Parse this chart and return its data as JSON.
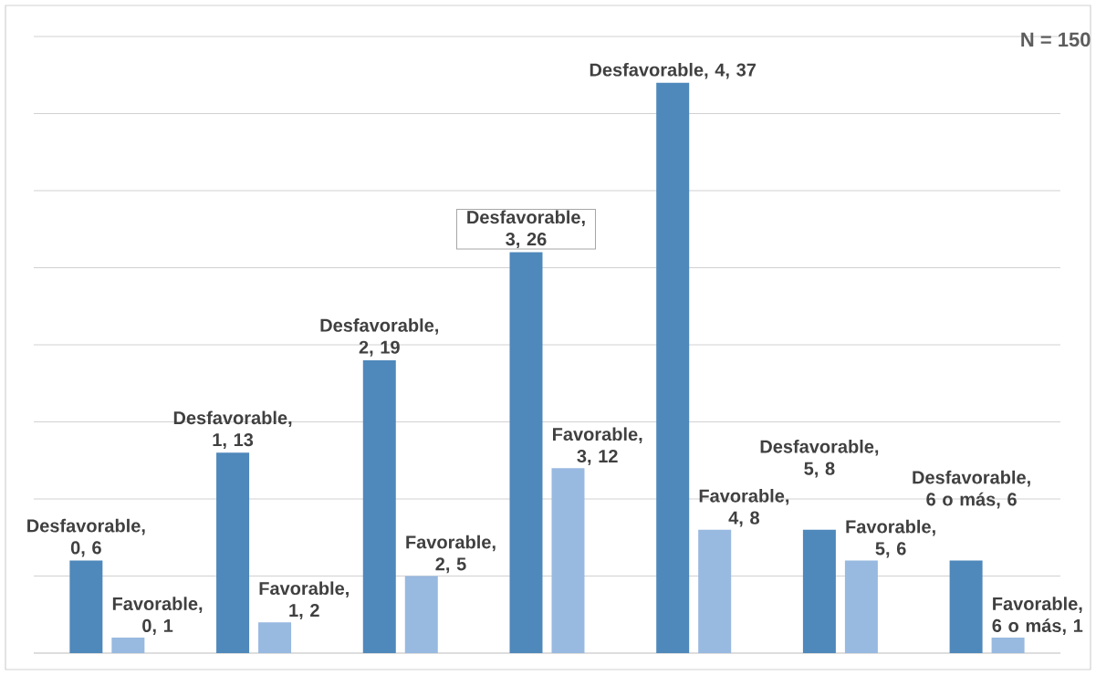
{
  "chart_data": {
    "type": "bar",
    "categories": [
      null,
      null,
      null,
      null,
      null,
      null,
      null
    ],
    "series": [
      {
        "color": "#4f88bb",
        "values": [
          6,
          13,
          19,
          26,
          37,
          8,
          6
        ],
        "value_labels": [
          "Desfavorable, 0, 6",
          "Desfavorable, 1, 13",
          "Desfavorable, 2, 19",
          "Desfavorable, 3, 26",
          "Desfavorable, 4, 37",
          "Desfavorable, 5, 8",
          "Desfavorable, 6 o más, 6"
        ]
      },
      {
        "color": "#98b9e0",
        "values": [
          1,
          2,
          5,
          12,
          8,
          6,
          1
        ],
        "value_labels": [
          "Favorable, 0, 1",
          "Favorable, 1, 2",
          "Favorable, 2, 5",
          "Favorable, 3, 12",
          "Favorable, 4, 8",
          "Favorable, 5, 6",
          "Favorable, 6 o más, 1"
        ]
      }
    ],
    "ylim": [
      0,
      40
    ],
    "yticks": [
      {
        "value": 0,
        "label": null
      },
      {
        "value": 5,
        "label": null
      },
      {
        "value": 10,
        "label": null
      },
      {
        "value": 15,
        "label": null
      },
      {
        "value": 20,
        "label": null
      },
      {
        "value": 25,
        "label": null
      },
      {
        "value": 30,
        "label": null
      },
      {
        "value": 35,
        "label": null
      },
      {
        "value": 40,
        "label": null
      }
    ],
    "grid": "y",
    "tick_labels": false,
    "annotations": [
      "N = 150"
    ]
  }
}
